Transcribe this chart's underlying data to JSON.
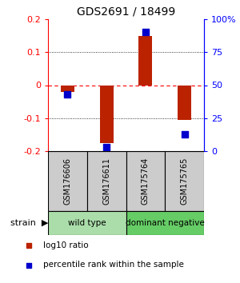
{
  "title": "GDS2691 / 18499",
  "samples": [
    "GSM176606",
    "GSM176611",
    "GSM175764",
    "GSM175765"
  ],
  "log10_ratio": [
    -0.02,
    -0.175,
    0.15,
    -0.105
  ],
  "percentile_rank": [
    43,
    3,
    90,
    13
  ],
  "groups": [
    {
      "label": "wild type",
      "samples": [
        0,
        1
      ],
      "color": "#aaddaa"
    },
    {
      "label": "dominant negative",
      "samples": [
        2,
        3
      ],
      "color": "#66cc66"
    }
  ],
  "ylim": [
    -0.2,
    0.2
  ],
  "yticks_left": [
    -0.2,
    -0.1,
    0.0,
    0.1,
    0.2
  ],
  "ytick_labels_left": [
    "-0.2",
    "-0.1",
    "0",
    "0.1",
    "0.2"
  ],
  "yticks_right": [
    0,
    25,
    50,
    75,
    100
  ],
  "ytick_labels_right": [
    "0",
    "25",
    "50",
    "75",
    "100%"
  ],
  "bar_color": "#bb2200",
  "dot_color": "#0000cc",
  "bar_width": 0.35,
  "dot_size": 40,
  "legend_items": [
    {
      "color": "#bb2200",
      "label": "log10 ratio"
    },
    {
      "color": "#0000cc",
      "label": "percentile rank within the sample"
    }
  ],
  "sample_box_color": "#cccccc",
  "strain_label": "strain"
}
